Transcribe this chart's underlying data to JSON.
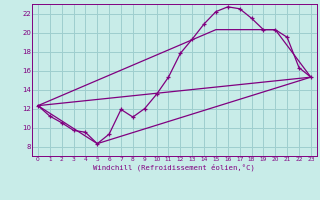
{
  "xlabel": "Windchill (Refroidissement éolien,°C)",
  "bg_color": "#c8ece8",
  "grid_color": "#9ecece",
  "line_color": "#800080",
  "xlim": [
    -0.5,
    23.5
  ],
  "ylim": [
    7.0,
    23.0
  ],
  "xticks": [
    0,
    1,
    2,
    3,
    4,
    5,
    6,
    7,
    8,
    9,
    10,
    11,
    12,
    13,
    14,
    15,
    16,
    17,
    18,
    19,
    20,
    21,
    22,
    23
  ],
  "yticks": [
    8,
    10,
    12,
    14,
    16,
    18,
    20,
    22
  ],
  "line1_x": [
    0,
    1,
    2,
    3,
    4,
    5,
    6,
    7,
    8,
    9,
    10,
    11,
    12,
    13,
    14,
    15,
    16,
    17,
    18,
    19,
    20,
    21,
    22,
    23
  ],
  "line1_y": [
    12.3,
    11.2,
    10.5,
    9.7,
    9.5,
    8.3,
    9.3,
    11.9,
    11.1,
    12.0,
    13.5,
    15.3,
    17.8,
    19.3,
    20.9,
    22.2,
    22.7,
    22.5,
    21.5,
    20.3,
    20.3,
    19.5,
    16.3,
    15.3
  ],
  "line2_x": [
    0,
    23
  ],
  "line2_y": [
    12.3,
    15.3
  ],
  "line3_x": [
    0,
    5,
    23
  ],
  "line3_y": [
    12.3,
    8.3,
    15.3
  ],
  "line4_x": [
    0,
    15,
    20,
    23
  ],
  "line4_y": [
    12.3,
    20.3,
    20.3,
    15.3
  ]
}
